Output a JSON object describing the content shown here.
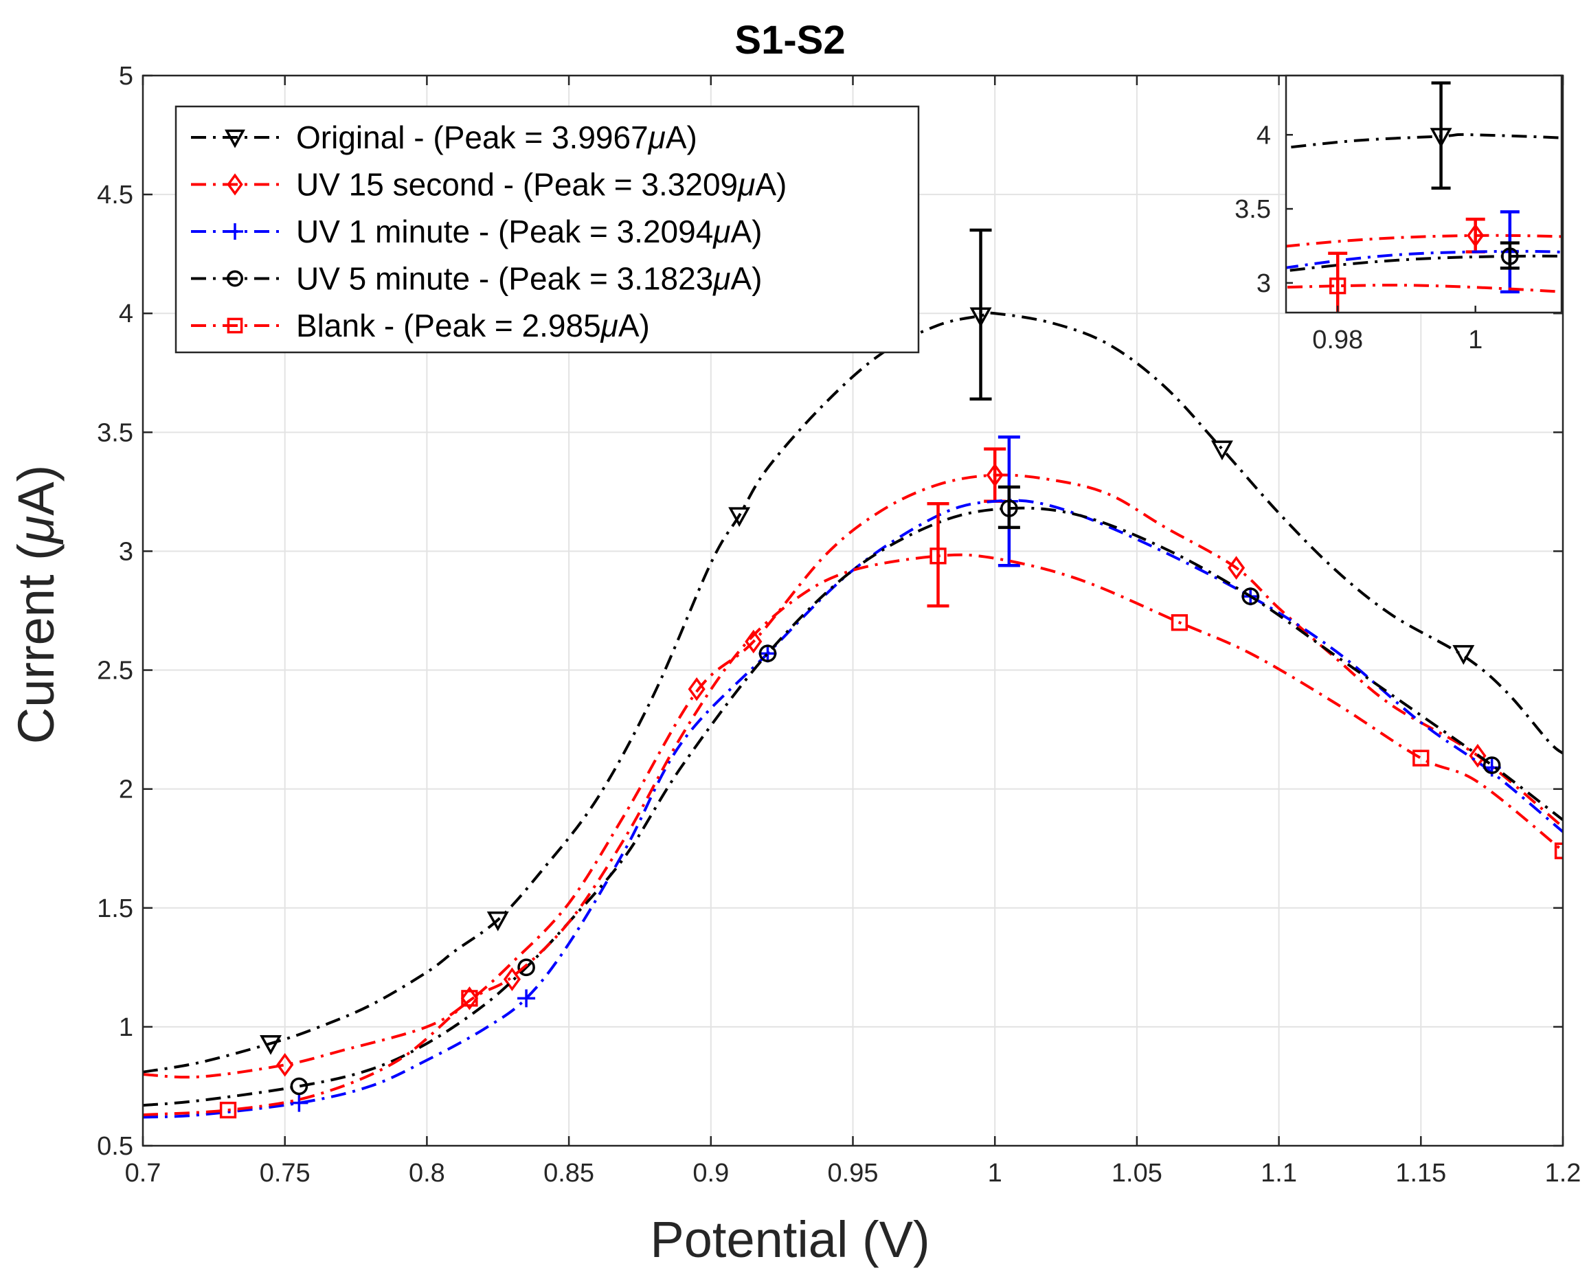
{
  "chart_data": {
    "type": "line",
    "title": "S1-S2",
    "xlabel": "Potential (V)",
    "ylabel_main": "Current (",
    "ylabel_unit": "μ",
    "ylabel_tail": "A)",
    "xlim": [
      0.7,
      1.2
    ],
    "ylim": [
      0.5,
      5
    ],
    "xticks": [
      0.7,
      0.75,
      0.8,
      0.85,
      0.9,
      0.95,
      1,
      1.05,
      1.1,
      1.15,
      1.2
    ],
    "xtick_labels": [
      "0.7",
      "0.75",
      "0.8",
      "0.85",
      "0.9",
      "0.95",
      "1",
      "1.05",
      "1.1",
      "1.15",
      "1.2"
    ],
    "yticks": [
      0.5,
      1,
      1.5,
      2,
      2.5,
      3,
      3.5,
      4,
      4.5,
      5
    ],
    "ytick_labels": [
      "0.5",
      "1",
      "1.5",
      "2",
      "2.5",
      "3",
      "3.5",
      "4",
      "4.5",
      "5"
    ],
    "grid": true,
    "legend_position": "top-left",
    "series": [
      {
        "name": "Original - (Peak = 3.9967",
        "unit": "μ",
        "unit_tail": "A)",
        "color": "#000000",
        "marker": "triangle-down",
        "x": [
          0.7,
          0.72,
          0.745,
          0.76,
          0.78,
          0.8,
          0.81,
          0.825,
          0.84,
          0.86,
          0.88,
          0.9,
          0.91,
          0.92,
          0.94,
          0.96,
          0.98,
          0.995,
          1.0,
          1.02,
          1.04,
          1.06,
          1.08,
          1.1,
          1.12,
          1.14,
          1.165,
          1.18,
          1.195,
          1.2
        ],
        "y": [
          0.81,
          0.85,
          0.93,
          0.99,
          1.09,
          1.23,
          1.32,
          1.45,
          1.65,
          1.96,
          2.4,
          2.95,
          3.15,
          3.35,
          3.62,
          3.83,
          3.95,
          3.99,
          4.0,
          3.96,
          3.87,
          3.69,
          3.43,
          3.16,
          2.92,
          2.73,
          2.56,
          2.41,
          2.2,
          2.15
        ],
        "markers_x": [
          0.745,
          0.825,
          0.91,
          0.995,
          1.08,
          1.165
        ],
        "markers_y": [
          0.93,
          1.45,
          3.15,
          3.99,
          3.43,
          2.57
        ],
        "errorbar": {
          "x": 0.995,
          "y": 3.99,
          "low": 3.64,
          "high": 4.35
        }
      },
      {
        "name": "UV 15 second - (Peak = 3.3209",
        "unit": "μ",
        "unit_tail": "A)",
        "color": "#ff0000",
        "marker": "diamond",
        "x": [
          0.7,
          0.72,
          0.75,
          0.77,
          0.8,
          0.815,
          0.83,
          0.85,
          0.87,
          0.895,
          0.915,
          0.94,
          0.96,
          0.98,
          1.0,
          1.02,
          1.04,
          1.06,
          1.085,
          1.1,
          1.12,
          1.14,
          1.17,
          1.2
        ],
        "y": [
          0.8,
          0.79,
          0.84,
          0.9,
          1.0,
          1.11,
          1.27,
          1.52,
          1.9,
          2.41,
          2.62,
          2.98,
          3.17,
          3.28,
          3.32,
          3.3,
          3.24,
          3.1,
          2.93,
          2.76,
          2.55,
          2.35,
          2.14,
          1.84
        ],
        "markers_x": [
          0.75,
          0.815,
          0.83,
          0.895,
          0.915,
          1.0,
          1.085,
          1.17
        ],
        "markers_y": [
          0.84,
          1.12,
          1.2,
          2.42,
          2.62,
          3.32,
          2.93,
          2.14
        ],
        "errorbar": {
          "x": 1.0,
          "y": 3.32,
          "low": 3.21,
          "high": 3.43
        }
      },
      {
        "name": "UV 1 minute - (Peak = 3.2094",
        "unit": "μ",
        "unit_tail": "A)",
        "color": "#0000ff",
        "marker": "plus",
        "x": [
          0.7,
          0.72,
          0.755,
          0.78,
          0.8,
          0.82,
          0.835,
          0.85,
          0.87,
          0.89,
          0.92,
          0.95,
          0.98,
          1.0,
          1.02,
          1.05,
          1.09,
          1.12,
          1.15,
          1.175,
          1.2
        ],
        "y": [
          0.62,
          0.63,
          0.68,
          0.75,
          0.86,
          0.99,
          1.12,
          1.35,
          1.75,
          2.2,
          2.57,
          2.92,
          3.15,
          3.21,
          3.19,
          3.05,
          2.81,
          2.58,
          2.28,
          2.07,
          1.82
        ],
        "markers_x": [
          0.755,
          0.835,
          0.92,
          1.005,
          1.09,
          1.175
        ],
        "markers_y": [
          0.68,
          1.12,
          2.57,
          3.21,
          2.81,
          2.09
        ],
        "errorbar": {
          "x": 1.005,
          "y": 3.21,
          "low": 2.94,
          "high": 3.48
        }
      },
      {
        "name": "UV 5 minute - (Peak = 3.1823",
        "unit": "μ",
        "unit_tail": "A)",
        "color": "#000000",
        "marker": "circle",
        "x": [
          0.7,
          0.72,
          0.755,
          0.78,
          0.8,
          0.82,
          0.835,
          0.85,
          0.87,
          0.89,
          0.92,
          0.95,
          0.98,
          1.005,
          1.03,
          1.06,
          1.09,
          1.12,
          1.15,
          1.175,
          1.2
        ],
        "y": [
          0.67,
          0.69,
          0.75,
          0.82,
          0.93,
          1.09,
          1.25,
          1.44,
          1.72,
          2.1,
          2.57,
          2.92,
          3.12,
          3.18,
          3.15,
          3.01,
          2.81,
          2.56,
          2.31,
          2.1,
          1.87
        ],
        "markers_x": [
          0.755,
          0.835,
          0.92,
          1.005,
          1.09,
          1.175
        ],
        "markers_y": [
          0.75,
          1.25,
          2.57,
          3.18,
          2.81,
          2.1
        ],
        "errorbar": {
          "x": 1.005,
          "y": 3.18,
          "low": 3.1,
          "high": 3.27
        }
      },
      {
        "name": "Blank - (Peak = 2.985",
        "unit": "μ",
        "unit_tail": "A)",
        "color": "#ff0000",
        "marker": "square",
        "x": [
          0.7,
          0.73,
          0.76,
          0.79,
          0.815,
          0.83,
          0.85,
          0.87,
          0.89,
          0.91,
          0.93,
          0.95,
          0.98,
          1.0,
          1.03,
          1.065,
          1.09,
          1.12,
          1.15,
          1.17,
          1.2
        ],
        "y": [
          0.63,
          0.65,
          0.71,
          0.86,
          1.11,
          1.21,
          1.44,
          1.8,
          2.23,
          2.58,
          2.8,
          2.92,
          2.98,
          2.97,
          2.88,
          2.7,
          2.57,
          2.36,
          2.13,
          2.03,
          1.74
        ],
        "markers_x": [
          0.73,
          0.815,
          0.98,
          1.065,
          1.15,
          1.2
        ],
        "markers_y": [
          0.65,
          1.12,
          2.98,
          2.7,
          2.13,
          1.74
        ],
        "errorbar": {
          "x": 0.98,
          "y": 2.98,
          "low": 2.77,
          "high": 3.2
        }
      }
    ],
    "inset": {
      "xlim": [
        0.9725,
        1.0125
      ],
      "ylim": [
        2.8,
        4.4
      ],
      "xticks": [
        0.98,
        1.0
      ],
      "xtick_labels": [
        "0.98",
        "1"
      ],
      "yticks": [
        3,
        3.5,
        4
      ],
      "ytick_labels": [
        "3",
        "3.5",
        "4"
      ]
    }
  }
}
